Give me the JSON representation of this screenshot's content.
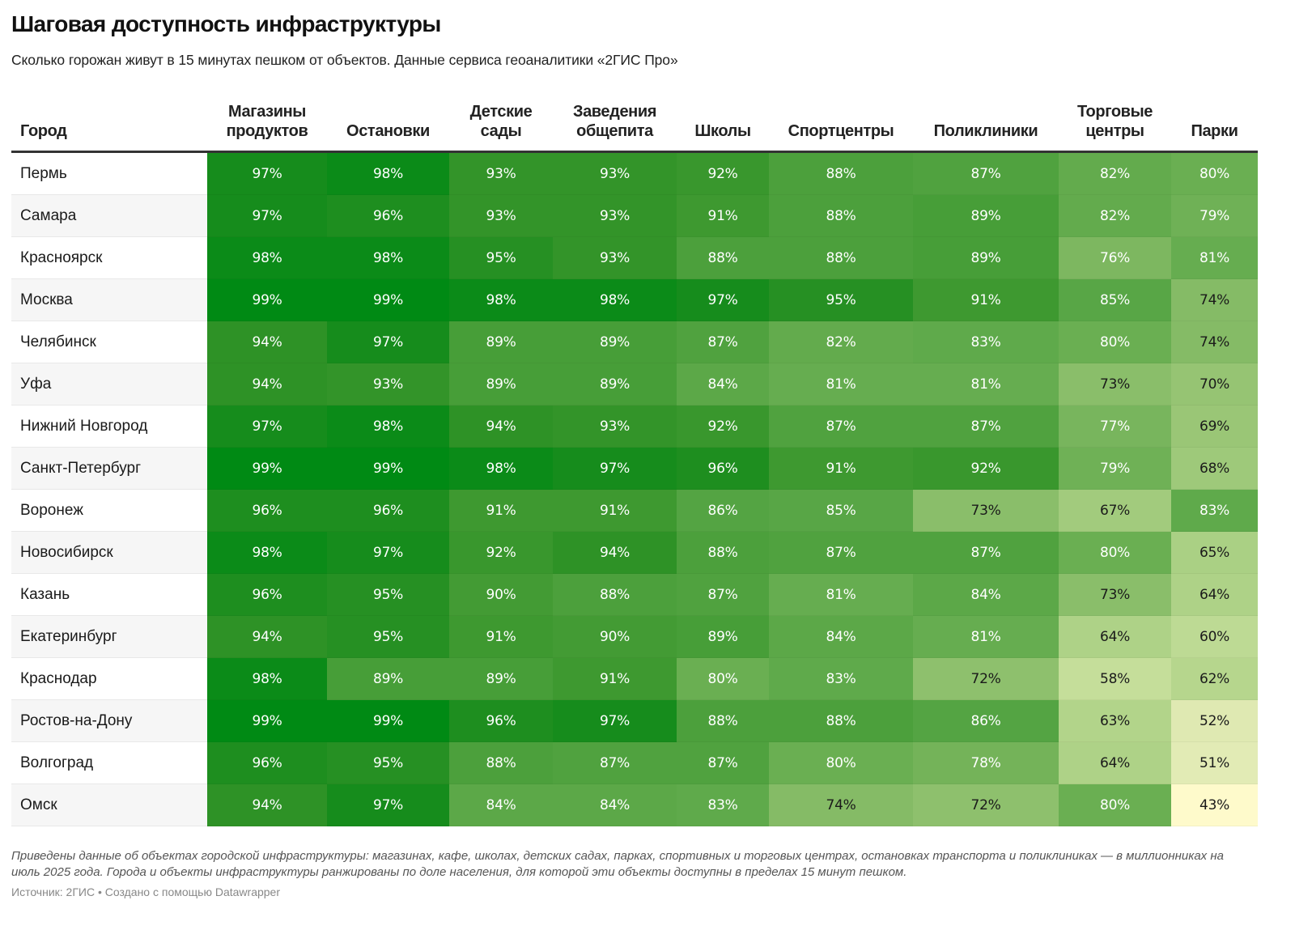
{
  "header": {
    "title": "Шаговая доступность инфраструктуры",
    "subtitle": "Сколько горожан живут в 15 минутах пешком от объектов. Данные сервиса геоаналитики «2ГИС Про»"
  },
  "footer": {
    "notes": "Приведены данные об объектах городской инфраструктуры: магазинах, кафе, школах, детских садах, парках, спортивных и торговых центрах, остановках транспорта и поликлиниках — в миллионниках на июль 2025 года. Города и объекты инфраструктуры ранжированы по доле населения, для которой эти объекты доступны в пределах 15 минут пешком.",
    "source": "Источник: 2ГИС • Создано с помощью Datawrapper"
  },
  "colors": {
    "scale_low": "#fefacb",
    "scale_high": "#008a14",
    "text_light": "#ffffff",
    "text_dark": "#1a1a1a",
    "header_rule": "#333333"
  },
  "chart_data": {
    "type": "heatmap",
    "title": "Шаговая доступность инфраструктуры",
    "subtitle": "Сколько горожан живут в 15 минутах пешком от объектов. Данные сервиса геоаналитики «2ГИС Про»",
    "row_header": "Город",
    "unit": "%",
    "columns": [
      "Магазины продуктов",
      "Остановки",
      "Детские сады",
      "Заведения общепита",
      "Школы",
      "Спортцентры",
      "Поликлиники",
      "Торговые центры",
      "Парки"
    ],
    "rows": [
      {
        "city": "Пермь",
        "values": [
          97,
          98,
          93,
          93,
          92,
          88,
          87,
          82,
          80
        ]
      },
      {
        "city": "Самара",
        "values": [
          97,
          96,
          93,
          93,
          91,
          88,
          89,
          82,
          79
        ]
      },
      {
        "city": "Красноярск",
        "values": [
          98,
          98,
          95,
          93,
          88,
          88,
          89,
          76,
          81
        ]
      },
      {
        "city": "Москва",
        "values": [
          99,
          99,
          98,
          98,
          97,
          95,
          91,
          85,
          74
        ]
      },
      {
        "city": "Челябинск",
        "values": [
          94,
          97,
          89,
          89,
          87,
          82,
          83,
          80,
          74
        ]
      },
      {
        "city": "Уфа",
        "values": [
          94,
          93,
          89,
          89,
          84,
          81,
          81,
          73,
          70
        ]
      },
      {
        "city": "Нижний Новгород",
        "values": [
          97,
          98,
          94,
          93,
          92,
          87,
          87,
          77,
          69
        ]
      },
      {
        "city": "Санкт-Петербург",
        "values": [
          99,
          99,
          98,
          97,
          96,
          91,
          92,
          79,
          68
        ]
      },
      {
        "city": "Воронеж",
        "values": [
          96,
          96,
          91,
          91,
          86,
          85,
          73,
          67,
          83
        ]
      },
      {
        "city": "Новосибирск",
        "values": [
          98,
          97,
          92,
          94,
          88,
          87,
          87,
          80,
          65
        ]
      },
      {
        "city": "Казань",
        "values": [
          96,
          95,
          90,
          88,
          87,
          81,
          84,
          73,
          64
        ]
      },
      {
        "city": "Екатеринбург",
        "values": [
          94,
          95,
          91,
          90,
          89,
          84,
          81,
          64,
          60
        ]
      },
      {
        "city": "Краснодар",
        "values": [
          98,
          89,
          89,
          91,
          80,
          83,
          72,
          58,
          62
        ]
      },
      {
        "city": "Ростов-на-Дону",
        "values": [
          99,
          99,
          96,
          97,
          88,
          88,
          86,
          63,
          52
        ]
      },
      {
        "city": "Волгоград",
        "values": [
          96,
          95,
          88,
          87,
          87,
          80,
          78,
          64,
          51
        ]
      },
      {
        "city": "Омск",
        "values": [
          94,
          97,
          84,
          84,
          83,
          74,
          72,
          80,
          43
        ]
      }
    ],
    "value_range": [
      43,
      99
    ]
  }
}
